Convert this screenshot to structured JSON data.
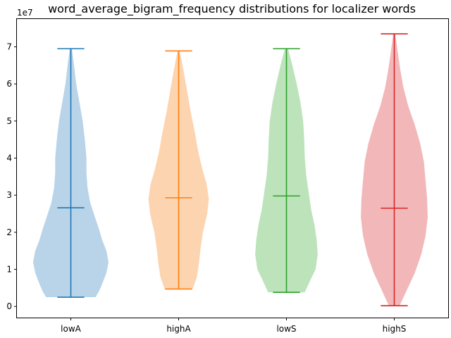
{
  "chart_data": {
    "type": "violin",
    "title": "word_average_bigram_frequency distributions for localizer words",
    "xlabel": "",
    "ylabel": "",
    "y_multiplier_label": "1e7",
    "ylim": [
      -0.3,
      7.75
    ],
    "y_unit": "1e7",
    "y_ticks": [
      0,
      1,
      2,
      3,
      4,
      5,
      6,
      7
    ],
    "y_tick_labels": [
      "0",
      "1",
      "2",
      "3",
      "4",
      "5",
      "6",
      "7"
    ],
    "categories": [
      "lowA",
      "highA",
      "lowS",
      "highS"
    ],
    "series": [
      {
        "category": "lowA",
        "color": "#1f77b4",
        "fill": "#b9d4e9",
        "min": 0.25,
        "max": 6.95,
        "mean": 2.66,
        "profile": [
          [
            0.25,
            0.46
          ],
          [
            0.4,
            0.52
          ],
          [
            0.6,
            0.58
          ],
          [
            0.9,
            0.66
          ],
          [
            1.2,
            0.7
          ],
          [
            1.5,
            0.66
          ],
          [
            1.8,
            0.58
          ],
          [
            2.1,
            0.52
          ],
          [
            2.4,
            0.45
          ],
          [
            2.8,
            0.36
          ],
          [
            3.2,
            0.31
          ],
          [
            3.6,
            0.29
          ],
          [
            4.0,
            0.29
          ],
          [
            4.5,
            0.26
          ],
          [
            5.0,
            0.22
          ],
          [
            5.5,
            0.16
          ],
          [
            6.0,
            0.1
          ],
          [
            6.5,
            0.06
          ],
          [
            6.95,
            0.02
          ]
        ]
      },
      {
        "category": "highA",
        "color": "#ff7f0e",
        "fill": "#fdd4b0",
        "min": 0.47,
        "max": 6.89,
        "mean": 2.93,
        "profile": [
          [
            0.47,
            0.26
          ],
          [
            0.8,
            0.34
          ],
          [
            1.2,
            0.38
          ],
          [
            1.6,
            0.41
          ],
          [
            2.0,
            0.45
          ],
          [
            2.5,
            0.53
          ],
          [
            2.9,
            0.56
          ],
          [
            3.3,
            0.52
          ],
          [
            3.7,
            0.44
          ],
          [
            4.2,
            0.36
          ],
          [
            4.7,
            0.3
          ],
          [
            5.2,
            0.23
          ],
          [
            5.7,
            0.17
          ],
          [
            6.2,
            0.11
          ],
          [
            6.6,
            0.06
          ],
          [
            6.89,
            0.02
          ]
        ]
      },
      {
        "category": "lowS",
        "color": "#2ca02c",
        "fill": "#bde3bb",
        "min": 0.38,
        "max": 6.95,
        "mean": 2.98,
        "profile": [
          [
            0.38,
            0.34
          ],
          [
            0.7,
            0.44
          ],
          [
            1.0,
            0.54
          ],
          [
            1.4,
            0.58
          ],
          [
            1.8,
            0.56
          ],
          [
            2.2,
            0.52
          ],
          [
            2.6,
            0.46
          ],
          [
            3.0,
            0.42
          ],
          [
            3.5,
            0.37
          ],
          [
            4.0,
            0.34
          ],
          [
            4.5,
            0.33
          ],
          [
            5.0,
            0.31
          ],
          [
            5.5,
            0.26
          ],
          [
            6.0,
            0.19
          ],
          [
            6.5,
            0.11
          ],
          [
            6.95,
            0.03
          ]
        ]
      },
      {
        "category": "highS",
        "color": "#d62728",
        "fill": "#f2b8b9",
        "min": 0.02,
        "max": 7.35,
        "mean": 2.65,
        "profile": [
          [
            0.02,
            0.1
          ],
          [
            0.4,
            0.22
          ],
          [
            0.9,
            0.38
          ],
          [
            1.4,
            0.5
          ],
          [
            1.9,
            0.58
          ],
          [
            2.4,
            0.62
          ],
          [
            2.9,
            0.61
          ],
          [
            3.4,
            0.58
          ],
          [
            3.9,
            0.55
          ],
          [
            4.4,
            0.48
          ],
          [
            4.9,
            0.38
          ],
          [
            5.4,
            0.26
          ],
          [
            5.9,
            0.17
          ],
          [
            6.4,
            0.11
          ],
          [
            6.9,
            0.06
          ],
          [
            7.35,
            0.02
          ]
        ]
      }
    ]
  }
}
